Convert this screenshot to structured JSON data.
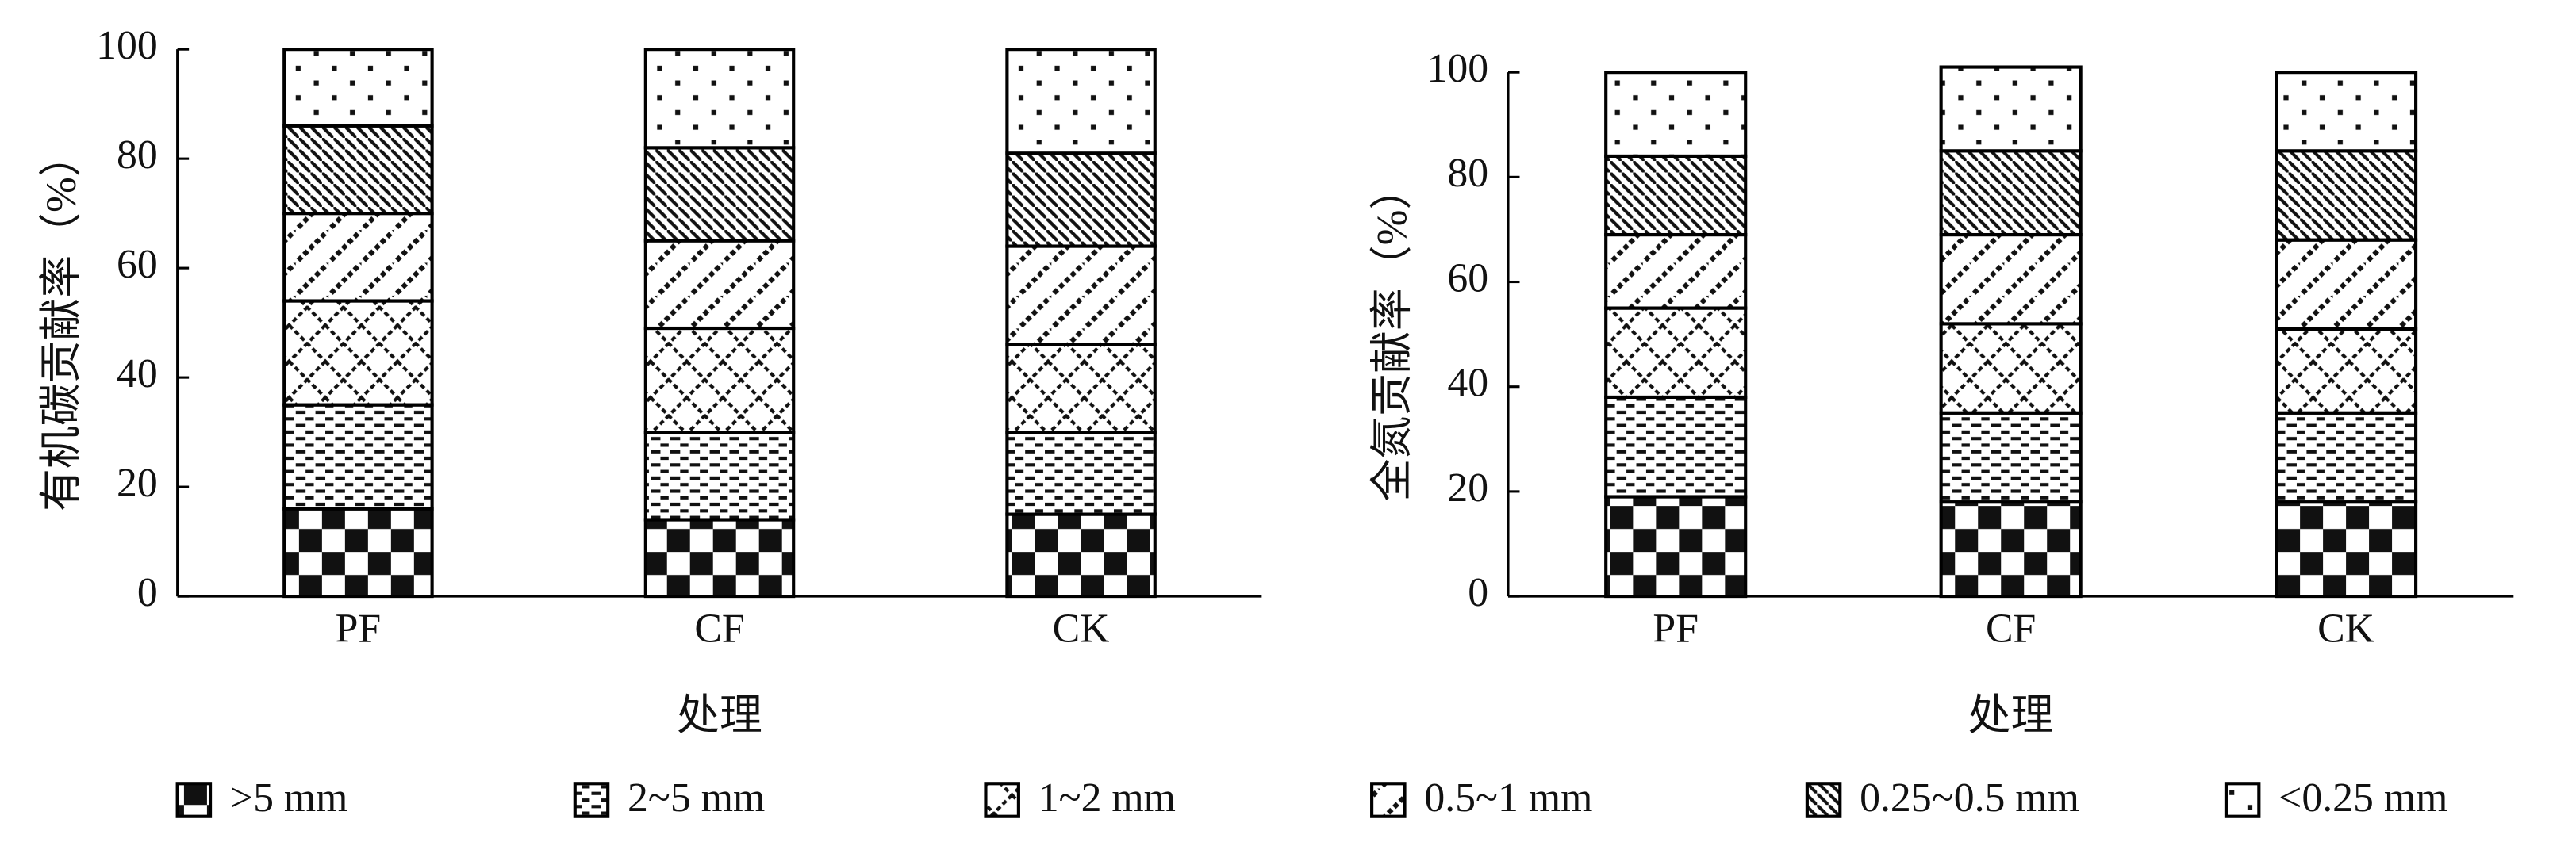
{
  "chart_data": [
    {
      "type": "stacked-bar",
      "y_label": "有机碳贡献率（%）",
      "x_label": "处理",
      "categories": [
        "PF",
        "CF",
        "CK"
      ],
      "ylim": [
        0,
        100
      ],
      "yticks": [
        0,
        20,
        40,
        60,
        80,
        100
      ],
      "series": [
        {
          "name": ">5 mm",
          "pattern": "checker",
          "color": "#000000",
          "values": [
            16,
            14,
            15
          ]
        },
        {
          "name": "2~5 mm",
          "pattern": "dashes",
          "color": "#000000",
          "values": [
            19,
            16,
            15
          ]
        },
        {
          "name": "1~2 mm",
          "pattern": "diamond",
          "color": "#000000",
          "values": [
            19,
            19,
            16
          ]
        },
        {
          "name": "0.5~1 mm",
          "pattern": "slash",
          "color": "#000000",
          "values": [
            16,
            16,
            18
          ]
        },
        {
          "name": "0.25~0.5 mm",
          "pattern": "backslash",
          "color": "#000000",
          "values": [
            16,
            17,
            17
          ]
        },
        {
          "name": "<0.25 mm",
          "pattern": "dots",
          "color": "#000000",
          "values": [
            14,
            18,
            19
          ]
        }
      ]
    },
    {
      "type": "stacked-bar",
      "y_label": "全氮贡献率（%）",
      "x_label": "处理",
      "categories": [
        "PF",
        "CF",
        "CK"
      ],
      "ylim": [
        0,
        100
      ],
      "yticks": [
        0,
        20,
        40,
        60,
        80,
        100
      ],
      "series": [
        {
          "name": ">5 mm",
          "pattern": "checker",
          "color": "#000000",
          "values": [
            19,
            18,
            18
          ]
        },
        {
          "name": "2~5 mm",
          "pattern": "dashes",
          "color": "#000000",
          "values": [
            19,
            17,
            17
          ]
        },
        {
          "name": "1~2 mm",
          "pattern": "diamond",
          "color": "#000000",
          "values": [
            17,
            17,
            16
          ]
        },
        {
          "name": "0.5~1 mm",
          "pattern": "slash",
          "color": "#000000",
          "values": [
            14,
            17,
            17
          ]
        },
        {
          "name": "0.25~0.5 mm",
          "pattern": "backslash",
          "color": "#000000",
          "values": [
            15,
            16,
            17
          ]
        },
        {
          "name": "<0.25 mm",
          "pattern": "dots",
          "color": "#000000",
          "values": [
            16,
            16,
            15
          ]
        }
      ]
    }
  ]
}
